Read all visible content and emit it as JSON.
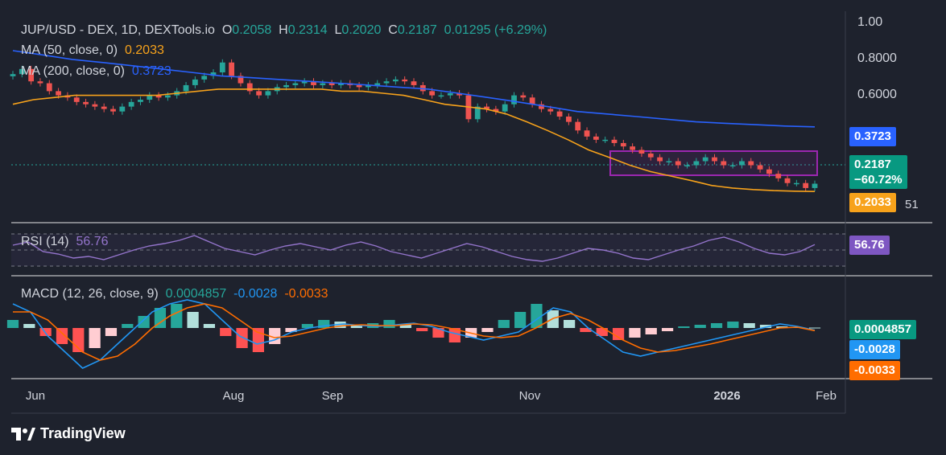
{
  "header": {
    "symbol": "JUP/USD - DEX, 1D, DEXTools.io",
    "open_label": "O",
    "open": "0.2058",
    "high_label": "H",
    "high": "0.2314",
    "low_label": "L",
    "low": "0.2020",
    "close_label": "C",
    "close": "0.2187",
    "change": "0.01295 (+6.29%)"
  },
  "ma50": {
    "label": "MA (50, close, 0)",
    "value": "0.2033",
    "color": "#f7a21b"
  },
  "ma200": {
    "label": "MA (200, close, 0)",
    "value": "0.3723",
    "color": "#2962ff"
  },
  "price_badges": {
    "ma200": "0.3723",
    "close": "0.2187",
    "change_pct": "−60.72%",
    "ma50": "0.2033",
    "partial": "51"
  },
  "rsi": {
    "label": "RSI (14)",
    "value": "56.76",
    "color": "#9575cd"
  },
  "macd": {
    "label": "MACD (12, 26, close, 9)",
    "hist": "0.0004857",
    "macd_line": "-0.0028",
    "signal": "-0.0033"
  },
  "branding": {
    "name": "TradingView"
  },
  "chart_data": [
    {
      "type": "line",
      "panel": "price",
      "y_ticks": [
        "1.00",
        "0.8000",
        "0.6000"
      ],
      "x_ticks": [
        "Jun",
        "Aug",
        "Sep",
        "Nov",
        "2026",
        "Feb"
      ],
      "log_scale": true,
      "ylim": [
        0.17,
        1.05
      ],
      "series": [
        {
          "name": "JUP/USD - DEX, 1D, DEXTools.io",
          "values": [
            0.61,
            0.64,
            0.57,
            0.56,
            0.52,
            0.5,
            0.49,
            0.47,
            0.46,
            0.45,
            0.44,
            0.43,
            0.45,
            0.47,
            0.48,
            0.5,
            0.49,
            0.5,
            0.52,
            0.55,
            0.58,
            0.6,
            0.62,
            0.68,
            0.6,
            0.56,
            0.52,
            0.5,
            0.52,
            0.54,
            0.55,
            0.56,
            0.57,
            0.55,
            0.56,
            0.55,
            0.56,
            0.55,
            0.54,
            0.55,
            0.56,
            0.57,
            0.58,
            0.57,
            0.55,
            0.52,
            0.5,
            0.5,
            0.51,
            0.5,
            0.4,
            0.45,
            0.44,
            0.43,
            0.46,
            0.5,
            0.49,
            0.46,
            0.44,
            0.43,
            0.41,
            0.39,
            0.36,
            0.34,
            0.33,
            0.33,
            0.32,
            0.31,
            0.3,
            0.29,
            0.28,
            0.27,
            0.27,
            0.26,
            0.26,
            0.27,
            0.28,
            0.27,
            0.26,
            0.26,
            0.27,
            0.26,
            0.25,
            0.24,
            0.23,
            0.22,
            0.22,
            0.21,
            0.2187
          ]
        },
        {
          "name": "MA (50, close, 0)",
          "values": [
            0.46,
            0.48,
            0.49,
            0.5,
            0.5,
            0.5,
            0.5,
            0.5,
            0.51,
            0.52,
            0.53,
            0.53,
            0.53,
            0.53,
            0.53,
            0.53,
            0.52,
            0.52,
            0.51,
            0.5,
            0.48,
            0.46,
            0.45,
            0.44,
            0.42,
            0.39,
            0.36,
            0.33,
            0.3,
            0.28,
            0.26,
            0.245,
            0.235,
            0.225,
            0.215,
            0.21,
            0.207,
            0.205,
            0.204,
            0.2033
          ]
        },
        {
          "name": "MA (200, close, 0)",
          "values": [
            0.76,
            0.73,
            0.7,
            0.68,
            0.66,
            0.64,
            0.62,
            0.6,
            0.59,
            0.58,
            0.57,
            0.56,
            0.55,
            0.54,
            0.53,
            0.51,
            0.49,
            0.47,
            0.45,
            0.43,
            0.42,
            0.41,
            0.4,
            0.39,
            0.385,
            0.38,
            0.375,
            0.3723
          ]
        }
      ],
      "annotations": [
        "0.3723",
        "0.2187",
        "−60.72%",
        "0.2033"
      ]
    },
    {
      "type": "line",
      "panel": "rsi",
      "series": [
        {
          "name": "RSI (14)",
          "values": [
            56,
            60,
            48,
            45,
            40,
            42,
            38,
            44,
            50,
            55,
            58,
            62,
            68,
            60,
            52,
            48,
            44,
            50,
            55,
            58,
            54,
            50,
            56,
            60,
            55,
            48,
            44,
            40,
            46,
            52,
            58,
            54,
            48,
            42,
            38,
            36,
            40,
            46,
            52,
            50,
            46,
            40,
            38,
            44,
            50,
            55,
            62,
            66,
            60,
            52,
            46,
            44,
            48,
            56.76
          ]
        }
      ],
      "annotations": [
        "56.76"
      ]
    },
    {
      "type": "bar",
      "panel": "macd",
      "series": [
        {
          "name": "Histogram",
          "values": [
            0.01,
            0.005,
            -0.01,
            -0.02,
            -0.03,
            -0.025,
            -0.01,
            0.005,
            0.015,
            0.025,
            0.03,
            0.02,
            0.005,
            -0.01,
            -0.025,
            -0.03,
            -0.02,
            -0.005,
            0.005,
            0.01,
            0.008,
            0.004,
            0.006,
            0.01,
            0.004,
            -0.004,
            -0.012,
            -0.018,
            -0.012,
            -0.005,
            0.01,
            0.02,
            0.03,
            0.022,
            0.01,
            -0.005,
            -0.01,
            -0.015,
            -0.012,
            -0.008,
            -0.004,
            0.002,
            0.004,
            0.006,
            0.008,
            0.006,
            0.004,
            0.002,
            0.001,
            0.0004857
          ]
        },
        {
          "name": "MACD",
          "values": [
            0.03,
            0.02,
            -0.01,
            -0.03,
            -0.05,
            -0.04,
            -0.02,
            0.0,
            0.02,
            0.03,
            0.035,
            0.03,
            0.01,
            -0.01,
            -0.02,
            -0.015,
            -0.005,
            0.0,
            0.003,
            0.005,
            0.003,
            0.002,
            0.004,
            0.006,
            0.002,
            -0.005,
            -0.01,
            -0.015,
            -0.01,
            -0.005,
            0.01,
            0.025,
            0.02,
            0.0,
            -0.015,
            -0.03,
            -0.035,
            -0.03,
            -0.025,
            -0.02,
            -0.015,
            -0.01,
            -0.005,
            0.0,
            0.005,
            0.002,
            -0.0028
          ]
        },
        {
          "name": "Signal",
          "values": [
            0.02,
            0.02,
            0.01,
            -0.01,
            -0.03,
            -0.04,
            -0.035,
            -0.02,
            0.0,
            0.015,
            0.025,
            0.03,
            0.025,
            0.01,
            -0.005,
            -0.012,
            -0.01,
            -0.005,
            0.0,
            0.003,
            0.004,
            0.003,
            0.003,
            0.005,
            0.004,
            0.0,
            -0.005,
            -0.01,
            -0.012,
            -0.01,
            0.0,
            0.012,
            0.018,
            0.01,
            -0.002,
            -0.015,
            -0.025,
            -0.03,
            -0.028,
            -0.024,
            -0.02,
            -0.015,
            -0.01,
            -0.005,
            0.0,
            0.001,
            -0.0033
          ]
        }
      ],
      "annotations": [
        "0.0004857",
        "-0.0028",
        "-0.0033"
      ]
    }
  ]
}
